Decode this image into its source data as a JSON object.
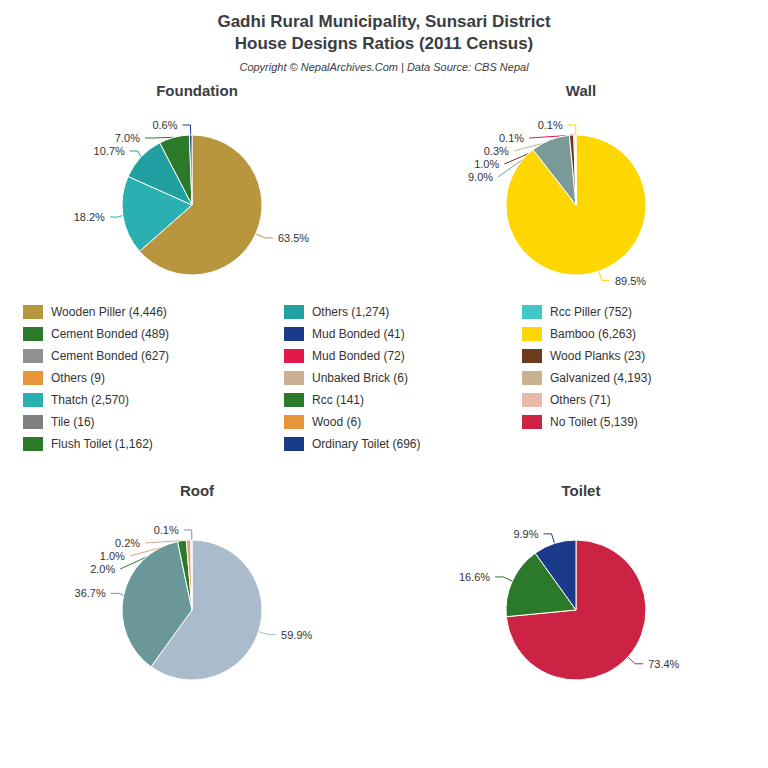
{
  "title": "Gadhi Rural Municipality, Sunsari District",
  "subtitle": "House Designs Ratios (2011 Census)",
  "annotations": [
    "Copyright © NepalArchives.Com | Data Source: CBS Nepal"
  ],
  "legend_entries": [
    {
      "name": "Wooden Piller (4,446)",
      "color": "#b8963e"
    },
    {
      "name": "Cement Bonded (489)",
      "color": "#2a7a2a"
    },
    {
      "name": "Cement Bonded (627)",
      "color": "#909090"
    },
    {
      "name": "Others (9)",
      "color": "#e8943a"
    },
    {
      "name": "Thatch (2,570)",
      "color": "#2ab0b0"
    },
    {
      "name": "Tile (16)",
      "color": "#808080"
    },
    {
      "name": "Flush Toilet (1,162)",
      "color": "#2a7a2a"
    },
    {
      "name": "Others (1,274)",
      "color": "#20a0a0"
    },
    {
      "name": "Mud Bonded (41)",
      "color": "#1a3a8a"
    },
    {
      "name": "Mud Bonded (72)",
      "color": "#e0194a"
    },
    {
      "name": "Unbaked Brick (6)",
      "color": "#c8b090"
    },
    {
      "name": "Rcc (141)",
      "color": "#2a7a2a"
    },
    {
      "name": "Wood (6)",
      "color": "#e8943a"
    },
    {
      "name": "Ordinary Toilet (696)",
      "color": "#1a3a8a"
    },
    {
      "name": "Rcc Piller (752)",
      "color": "#40c8c8"
    },
    {
      "name": "Bamboo (6,263)",
      "color": "#ffd700"
    },
    {
      "name": "Wood Planks (23)",
      "color": "#6b3d1e"
    },
    {
      "name": "Galvanized (4,193)",
      "color": "#c8b090"
    },
    {
      "name": "Others (71)",
      "color": "#e8b8a8"
    },
    {
      "name": "No Toilet (5,139)",
      "color": "#cc2244"
    }
  ],
  "chart_data": [
    {
      "type": "pie",
      "title": "Foundation",
      "values": [
        63.5,
        18.2,
        10.7,
        7.0,
        0.6
      ],
      "value_labels": [
        "63.5%",
        "18.2%",
        "10.7%",
        "7.0%",
        "0.6%"
      ],
      "colors": [
        "#b8963e",
        "#2ab0b0",
        "#20a0a0",
        "#2a7a2a",
        "#1a3a9a"
      ],
      "data_labels": true
    },
    {
      "type": "pie",
      "title": "Wall",
      "values": [
        89.5,
        9.0,
        1.0,
        0.3,
        0.1,
        0.1
      ],
      "value_labels": [
        "89.5%",
        "9.0%",
        "1.0%",
        "0.3%",
        "0.1%",
        "0.1%"
      ],
      "colors": [
        "#ffd700",
        "#7a9a9a",
        "#6b3d1e",
        "#c8b090",
        "#e0194a",
        "#ffd700"
      ],
      "data_labels": true
    },
    {
      "type": "pie",
      "title": "Roof",
      "values": [
        59.9,
        36.7,
        2.0,
        1.0,
        0.2,
        0.1
      ],
      "value_labels": [
        "59.9%",
        "36.7%",
        "2.0%",
        "1.0%",
        "0.2%",
        "0.1%"
      ],
      "colors": [
        "#aabccc",
        "#6a9898",
        "#2a7a2a",
        "#e8a070",
        "#c8a898",
        "#909090"
      ],
      "data_labels": true
    },
    {
      "type": "pie",
      "title": "Toilet",
      "values": [
        73.4,
        16.6,
        9.9
      ],
      "value_labels": [
        "73.4%",
        "16.6%",
        "9.9%"
      ],
      "colors": [
        "#cc2244",
        "#2a7a2a",
        "#1a3a8a"
      ],
      "data_labels": true
    }
  ]
}
